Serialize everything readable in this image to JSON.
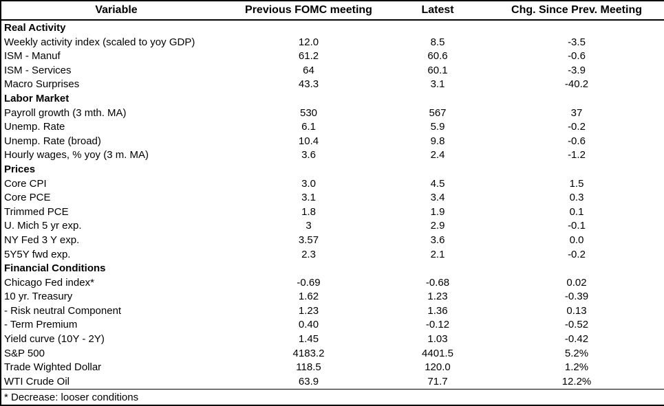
{
  "colors": {
    "background": "#ffffff",
    "text": "#000000",
    "border": "#000000"
  },
  "footer": {
    "note": "* Decrease: looser conditions"
  },
  "chart_data": {
    "type": "table",
    "columns": [
      "Variable",
      "Previous FOMC meeting",
      "Latest",
      "Chg. Since Prev. Meeting"
    ],
    "rows": [
      {
        "type": "section",
        "label": "Real Activity"
      },
      {
        "type": "data",
        "label": "Weekly activity index (scaled to yoy GDP)",
        "prev": "12.0",
        "latest": "8.5",
        "chg": "-3.5"
      },
      {
        "type": "data",
        "label": "ISM - Manuf",
        "prev": "61.2",
        "latest": "60.6",
        "chg": "-0.6"
      },
      {
        "type": "data",
        "label": "ISM - Services",
        "prev": "64",
        "latest": "60.1",
        "chg": "-3.9"
      },
      {
        "type": "data",
        "label": "Macro Surprises",
        "prev": "43.3",
        "latest": "3.1",
        "chg": "-40.2"
      },
      {
        "type": "section",
        "label": "Labor Market"
      },
      {
        "type": "data",
        "label": "Payroll growth (3 mth. MA)",
        "prev": "530",
        "latest": "567",
        "chg": "37"
      },
      {
        "type": "data",
        "label": "Unemp. Rate",
        "prev": "6.1",
        "latest": "5.9",
        "chg": "-0.2"
      },
      {
        "type": "data",
        "label": "Unemp. Rate (broad)",
        "prev": "10.4",
        "latest": "9.8",
        "chg": "-0.6"
      },
      {
        "type": "data",
        "label": "Hourly wages, % yoy (3 m. MA)",
        "prev": "3.6",
        "latest": "2.4",
        "chg": "-1.2"
      },
      {
        "type": "section",
        "label": "Prices"
      },
      {
        "type": "data",
        "label": "Core CPI",
        "prev": "3.0",
        "latest": "4.5",
        "chg": "1.5"
      },
      {
        "type": "data",
        "label": "Core PCE",
        "prev": "3.1",
        "latest": "3.4",
        "chg": "0.3"
      },
      {
        "type": "data",
        "label": "Trimmed PCE",
        "prev": "1.8",
        "latest": "1.9",
        "chg": "0.1"
      },
      {
        "type": "data",
        "label": "U. Mich 5 yr exp.",
        "prev": "3",
        "latest": "2.9",
        "chg": "-0.1"
      },
      {
        "type": "data",
        "label": "NY Fed 3 Y exp.",
        "prev": "3.57",
        "latest": "3.6",
        "chg": "0.0"
      },
      {
        "type": "data",
        "label": "5Y5Y fwd exp.",
        "prev": "2.3",
        "latest": "2.1",
        "chg": "-0.2"
      },
      {
        "type": "section",
        "label": "Financial Conditions"
      },
      {
        "type": "data",
        "label": "Chicago Fed index*",
        "prev": "-0.69",
        "latest": "-0.68",
        "chg": "0.02"
      },
      {
        "type": "data",
        "label": "10 yr. Treasury",
        "prev": "1.62",
        "latest": "1.23",
        "chg": "-0.39"
      },
      {
        "type": "data",
        "label": "- Risk neutral Component",
        "prev": "1.23",
        "latest": "1.36",
        "chg": "0.13"
      },
      {
        "type": "data",
        "label": "- Term Premium",
        "prev": "0.40",
        "latest": "-0.12",
        "chg": "-0.52"
      },
      {
        "type": "data",
        "label": "Yield curve (10Y - 2Y)",
        "prev": "1.45",
        "latest": "1.03",
        "chg": "-0.42"
      },
      {
        "type": "data",
        "label": "S&P 500",
        "prev": "4183.2",
        "latest": "4401.5",
        "chg": "5.2%"
      },
      {
        "type": "data",
        "label": "Trade Wighted Dollar",
        "prev": "118.5",
        "latest": "120.0",
        "chg": "1.2%"
      },
      {
        "type": "data",
        "label": "WTI Crude Oil",
        "prev": "63.9",
        "latest": "71.7",
        "chg": "12.2%"
      }
    ]
  }
}
